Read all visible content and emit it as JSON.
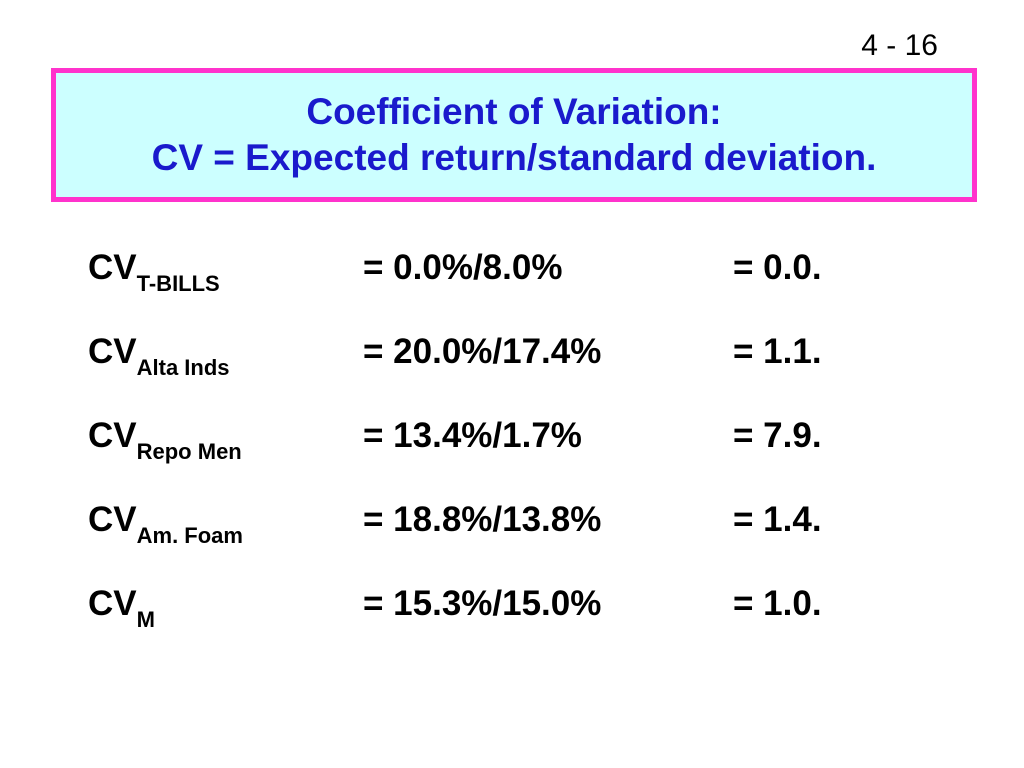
{
  "slide_number": "4 - 16",
  "title": {
    "line1": "Coefficient of Variation:",
    "line2": "CV = Expected return/standard deviation."
  },
  "colors": {
    "title_text": "#1a1acc",
    "title_background": "#ccffff",
    "title_border": "#ff33cc"
  },
  "rows": [
    {
      "label": "CV",
      "subscript": "T-BILLS",
      "formula": "= 0.0%/8.0%",
      "result": "= 0.0."
    },
    {
      "label": "CV",
      "subscript": "Alta Inds",
      "formula": "= 20.0%/17.4%",
      "result": "= 1.1."
    },
    {
      "label": "CV",
      "subscript": "Repo Men",
      "formula": "= 13.4%/1.7%",
      "result": "= 7.9."
    },
    {
      "label": "CV",
      "subscript": "Am. Foam",
      "formula": "= 18.8%/13.8%",
      "result": "= 1.4."
    },
    {
      "label": "CV",
      "subscript": "M",
      "formula": "= 15.3%/15.0%",
      "result": "= 1.0."
    }
  ]
}
